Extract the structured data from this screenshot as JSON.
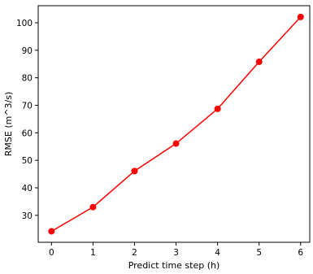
{
  "chart_data": {
    "type": "line",
    "title": "",
    "xlabel": "Predict time step (h)",
    "ylabel": "RMSE (m^3/s)",
    "x": [
      0,
      1,
      2,
      3,
      4,
      5,
      6
    ],
    "series": [
      {
        "values": [
          24.2,
          33.0,
          46.1,
          56.1,
          68.7,
          85.8,
          102.1
        ],
        "color": "#ff0000"
      }
    ],
    "xlim": [
      -0.32,
      6.22
    ],
    "ylim": [
      20.2,
      106.2
    ],
    "xticks": [
      "0",
      "1",
      "2",
      "3",
      "4",
      "5",
      "6"
    ],
    "yticks": [
      "30",
      "40",
      "50",
      "60",
      "70",
      "80",
      "90",
      "100"
    ],
    "grid": false,
    "legend": "none"
  }
}
